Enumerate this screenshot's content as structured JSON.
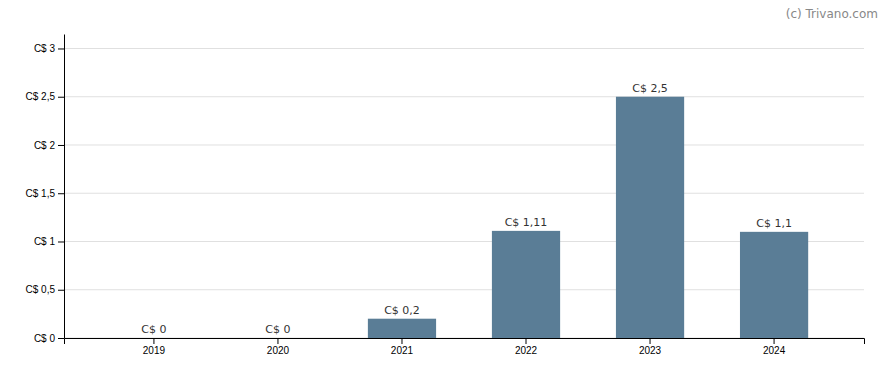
{
  "chart_data": {
    "type": "bar",
    "categories": [
      "2019",
      "2020",
      "2021",
      "2022",
      "2023",
      "2024"
    ],
    "values": [
      0.0,
      0.0,
      0.2,
      1.11,
      2.5,
      1.1
    ],
    "value_labels": [
      "C$ 0",
      "C$ 0",
      "C$ 0,2",
      "C$ 1,11",
      "C$ 2,5",
      "C$ 1,1"
    ],
    "data_labels": true,
    "color": "#5a7d96",
    "ylim": [
      0,
      3.15
    ],
    "yticks": [
      {
        "value": 0,
        "label": "C$ 0"
      },
      {
        "value": 0.5,
        "label": "C$ 0,5"
      },
      {
        "value": 1.0,
        "label": "C$ 1"
      },
      {
        "value": 1.5,
        "label": "C$ 1,5"
      },
      {
        "value": 2.0,
        "label": "C$ 2"
      },
      {
        "value": 2.5,
        "label": "C$ 2,5"
      },
      {
        "value": 3.0,
        "label": "C$ 3"
      }
    ],
    "grid": true,
    "annotations": [
      "(c) Trivano.com"
    ]
  }
}
